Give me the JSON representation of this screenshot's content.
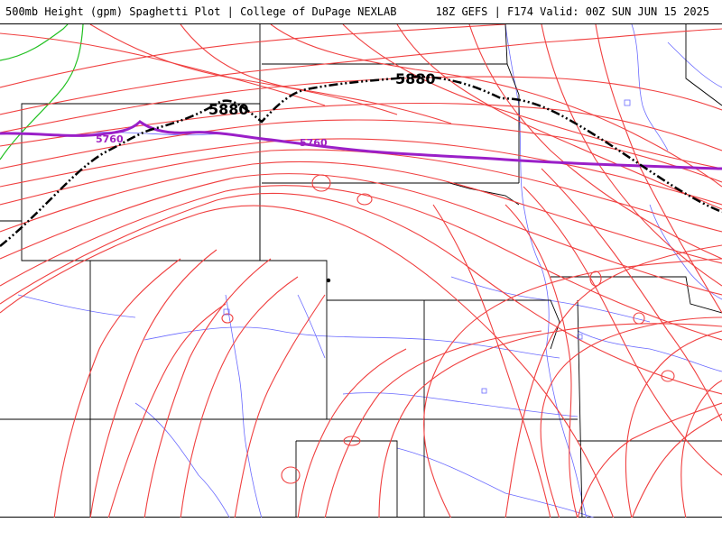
{
  "header": {
    "left_title": "500mb Height (gpm) Spaghetti Plot | College of DuPage NEXLAB",
    "right_title": "18Z GEFS | F174 Valid: 00Z SUN JUN 15 2025"
  },
  "contours": {
    "black_label": "5880",
    "purple_label": "5760"
  },
  "colors": {
    "member_lines": "#f04040",
    "green_lines": "#20c020",
    "purple_line": "#9a1fc8",
    "black_line": "#000000",
    "state_borders": "#000000",
    "rivers": "#6a6aff"
  }
}
